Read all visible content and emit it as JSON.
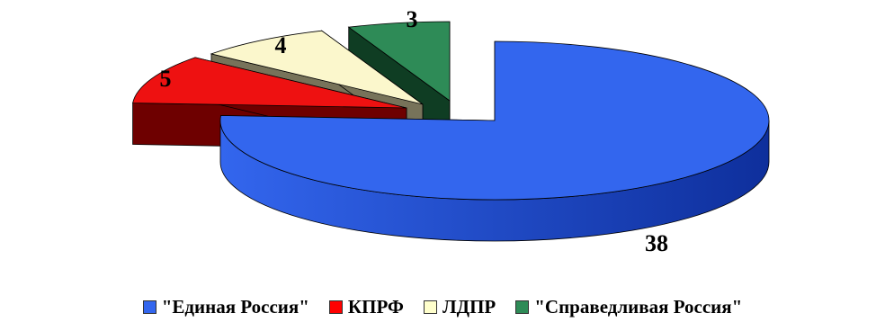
{
  "chart_data": {
    "type": "pie",
    "style": "3d-exploded",
    "title": "",
    "legend_position": "bottom",
    "categories": [
      "\"Единая Россия\"",
      "КПРФ",
      "ЛДПР",
      "\"Справедливая Россия\""
    ],
    "values": [
      38,
      5,
      4,
      3
    ],
    "labels": [
      "38",
      "5",
      "4",
      "3"
    ],
    "colors": {
      "top": [
        "#3366ee",
        "#ee1111",
        "#fbf7cc",
        "#2e8b57"
      ],
      "side": [
        "#0e2f9c",
        "#6e0000",
        "#77735a",
        "#0f3d23"
      ],
      "legend": [
        "#3366ee",
        "#ff0000",
        "#ffffcc",
        "#2e8b57"
      ]
    }
  }
}
